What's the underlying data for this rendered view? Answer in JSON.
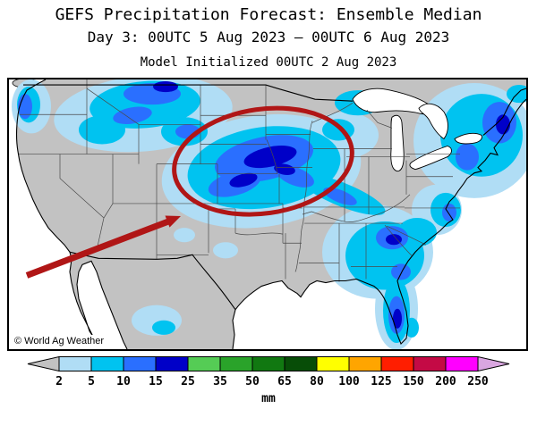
{
  "header": {
    "title": "GEFS Precipitation Forecast: Ensemble Median",
    "subtitle": "Day 3: 00UTC 5 Aug 2023 — 00UTC 6 Aug 2023",
    "init_line": "Model Initialized 00UTC 2 Aug 2023"
  },
  "map": {
    "watermark": "© World Ag Weather",
    "land_color": "#c2c2c2",
    "water_color": "#ffffff",
    "annotation_color": "#b01616",
    "annotation": "red ellipse and arrow highlighting heavy rain over the Northern Plains"
  },
  "legend": {
    "unit": "mm",
    "ticks": [
      "2",
      "5",
      "10",
      "15",
      "25",
      "35",
      "50",
      "65",
      "80",
      "100",
      "125",
      "150",
      "200",
      "250"
    ],
    "colors": [
      "#c2c2c2",
      "#b0ddf5",
      "#00c3f0",
      "#2a6fff",
      "#0000c8",
      "#55cc55",
      "#2aa32a",
      "#117811",
      "#074d07",
      "#ffff00",
      "#ffa500",
      "#ff1e00",
      "#c40a45",
      "#ff00ff",
      "#d9a6e0"
    ]
  }
}
